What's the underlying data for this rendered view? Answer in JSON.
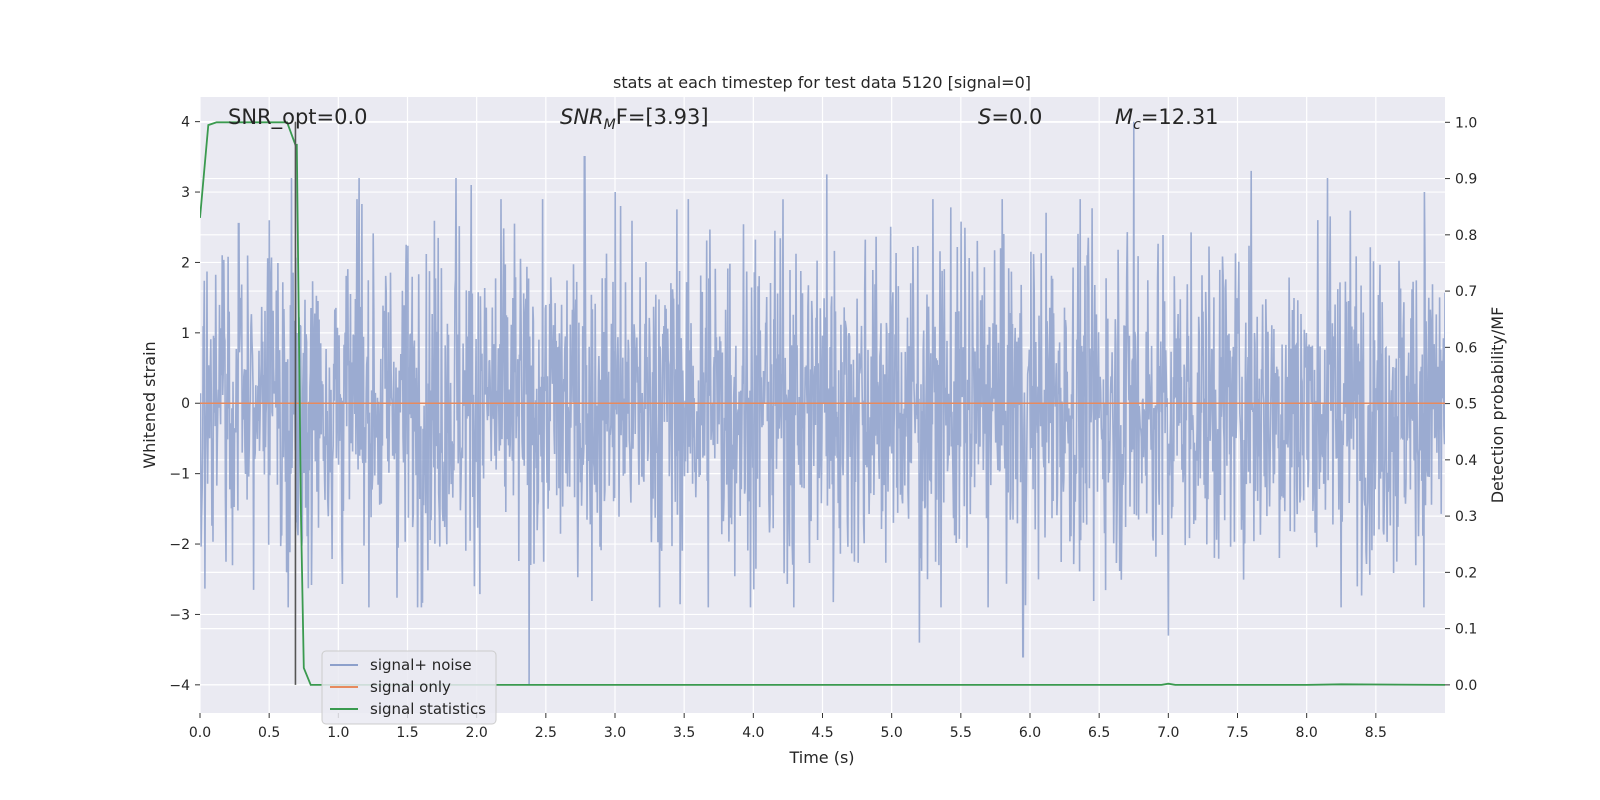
{
  "chart_data": {
    "type": "line",
    "title": "stats at each timestep for test data 5120 [signal=0]",
    "xlabel": "Time (s)",
    "ylabel_left": "Whitened strain",
    "ylabel_right": "Detection probability/MF",
    "xlim": [
      0.0,
      9.0
    ],
    "ylim_left": [
      -4.4,
      4.35
    ],
    "ylim_right": [
      -0.05,
      1.045
    ],
    "x_ticks": [
      "0.0",
      "0.5",
      "1.0",
      "1.5",
      "2.0",
      "2.5",
      "3.0",
      "3.5",
      "4.0",
      "4.5",
      "5.0",
      "5.5",
      "6.0",
      "6.5",
      "7.0",
      "7.5",
      "8.0",
      "8.5"
    ],
    "y_left_ticks": [
      "4",
      "3",
      "2",
      "1",
      "0",
      "−1",
      "−2",
      "−3",
      "−4"
    ],
    "y_right_ticks": [
      "1.0",
      "0.9",
      "0.8",
      "0.7",
      "0.6",
      "0.5",
      "0.4",
      "0.3",
      "0.2",
      "0.1",
      "0.0"
    ],
    "grid": true,
    "legend_position": "lower-left",
    "annotations": {
      "snr_opt": "SNR_opt=0.0",
      "snr_mf_sym": "SNR",
      "snr_mf_sub": "M",
      "snr_mf_tail": "F=[3.93]",
      "s_sym": "S",
      "s_val": "=0.0",
      "mc_sym": "M",
      "mc_sub": "c",
      "mc_val": "=12.31"
    },
    "marker_line_x": 0.69,
    "series": [
      {
        "name": "signal+ noise",
        "color": "#8da0cb",
        "description_values": "whitened noise, values mostly within -2.5..2.5, peaks to about 4.0 near t=6.75 and -4.0 near t=2.38",
        "notable_peaks": [
          {
            "x": 0.28,
            "y": 2.55
          },
          {
            "x": 0.5,
            "y": 2.6
          },
          {
            "x": 0.66,
            "y": 3.2
          },
          {
            "x": 1.15,
            "y": 3.2
          },
          {
            "x": 1.85,
            "y": 3.2
          },
          {
            "x": 1.96,
            "y": 3.1
          },
          {
            "x": 2.38,
            "y": -4.0
          },
          {
            "x": 2.78,
            "y": 3.5
          },
          {
            "x": 3.0,
            "y": 3.0
          },
          {
            "x": 4.53,
            "y": 3.25
          },
          {
            "x": 5.2,
            "y": -3.4
          },
          {
            "x": 5.95,
            "y": -3.6
          },
          {
            "x": 6.75,
            "y": 4.0
          },
          {
            "x": 7.0,
            "y": -3.3
          },
          {
            "x": 7.6,
            "y": 3.3
          },
          {
            "x": 8.15,
            "y": 3.2
          },
          {
            "x": 8.85,
            "y": 3.0
          }
        ]
      },
      {
        "name": "signal only",
        "color": "#e78a5e",
        "x": [
          0.0,
          9.0
        ],
        "y": [
          0.0,
          0.0
        ]
      },
      {
        "name": "signal statistics",
        "color": "#3a9a4f",
        "axis": "right",
        "x": [
          0.0,
          0.06,
          0.12,
          0.2,
          0.3,
          0.4,
          0.5,
          0.6,
          0.63,
          0.69,
          0.7,
          0.73,
          0.75,
          0.8,
          0.85,
          1.0,
          2.0,
          3.0,
          4.0,
          5.0,
          6.0,
          6.95,
          7.0,
          7.05,
          8.0,
          8.25,
          9.0
        ],
        "y": [
          0.83,
          0.995,
          1.0,
          1.0,
          1.0,
          1.0,
          1.0,
          1.0,
          1.0,
          0.96,
          0.96,
          0.3,
          0.03,
          0.0,
          0.0,
          0.0,
          0.0,
          0.0,
          0.0,
          0.0,
          0.0,
          0.0,
          0.002,
          0.0,
          0.0,
          0.001,
          0.0
        ]
      }
    ],
    "colors": {
      "axes_bg": "#eaeaf2",
      "grid": "#ffffff",
      "marker_line": "#555555"
    }
  }
}
